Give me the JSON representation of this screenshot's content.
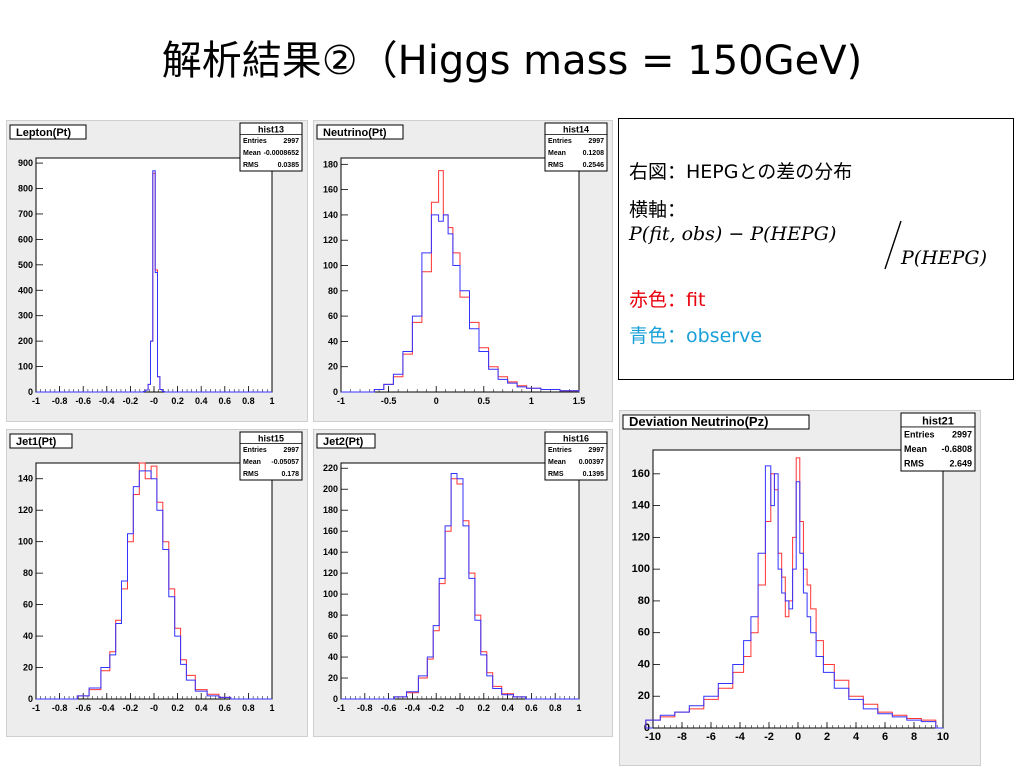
{
  "slide": {
    "title": "解析結果②（Higgs mass = 150GeV)"
  },
  "legend": {
    "line1": "右図：HEPGとの差の分布",
    "line2": "横軸：",
    "formula_numerator": "P(fit, obs) − P(HEPG)",
    "formula_denominator": "P(HEPG)",
    "red_label": "赤色：fit",
    "blue_label": "青色：observe",
    "red_color": "#e8000b",
    "blue_color": "#1aa0d8"
  },
  "colors": {
    "fit": "#ff3333",
    "observe": "#3333ff",
    "frame_bg": "#ededed",
    "plot_bg": "#ffffff"
  },
  "chart_data": [
    {
      "type": "histogram",
      "title": "Lepton(Pt)",
      "stats": {
        "name": "hist13",
        "entries": "2997",
        "mean": "-0.0008652",
        "rms": "0.0385"
      },
      "stats_labels": [
        "Entries",
        "Mean",
        "RMS"
      ],
      "xlim": [
        -1,
        1
      ],
      "ylim": [
        0,
        920
      ],
      "xticks": [
        -1,
        -0.8,
        -0.6,
        -0.4,
        -0.2,
        0,
        0.2,
        0.4,
        0.6,
        0.8,
        1
      ],
      "xtick_labels": [
        "-1",
        "-0.8",
        "-0.6",
        "-0.4",
        "-0.2",
        "-0",
        "0.2",
        "0.4",
        "0.6",
        "0.8",
        "1"
      ],
      "yticks": [
        0,
        100,
        200,
        300,
        400,
        500,
        600,
        700,
        800,
        900
      ],
      "x": [
        -0.08,
        -0.06,
        -0.04,
        -0.02,
        0.0,
        0.02,
        0.04,
        0.06,
        0.08
      ],
      "series": [
        {
          "values": [
            2,
            8,
            30,
            200,
            860,
            480,
            60,
            10,
            2
          ]
        },
        {
          "values": [
            2,
            8,
            30,
            200,
            870,
            470,
            60,
            10,
            2
          ]
        }
      ]
    },
    {
      "type": "histogram",
      "title": "Neutrino(Pt)",
      "stats": {
        "name": "hist14",
        "entries": "2997",
        "mean": "0.1208",
        "rms": "0.2546"
      },
      "stats_labels": [
        "Entries",
        "Mean",
        "RMS"
      ],
      "xlim": [
        -1,
        1.5
      ],
      "ylim": [
        0,
        185
      ],
      "xticks": [
        -1,
        -0.5,
        0,
        0.5,
        1,
        1.5
      ],
      "xtick_labels": [
        "-1",
        "-0.5",
        "0",
        "0.5",
        "1",
        "1.5"
      ],
      "yticks": [
        0,
        20,
        40,
        60,
        80,
        100,
        120,
        140,
        160,
        180
      ],
      "x": [
        -0.6,
        -0.5,
        -0.4,
        -0.3,
        -0.2,
        -0.1,
        0.0,
        0.05,
        0.1,
        0.15,
        0.2,
        0.3,
        0.4,
        0.5,
        0.6,
        0.7,
        0.8,
        0.9,
        1.0,
        1.2,
        1.4
      ],
      "series": [
        {
          "values": [
            2,
            6,
            12,
            30,
            55,
            95,
            150,
            175,
            140,
            130,
            110,
            75,
            55,
            35,
            20,
            12,
            8,
            5,
            3,
            2,
            1
          ]
        },
        {
          "values": [
            2,
            6,
            14,
            32,
            60,
            110,
            140,
            135,
            140,
            125,
            100,
            80,
            50,
            32,
            18,
            10,
            7,
            4,
            3,
            2,
            1
          ]
        }
      ]
    },
    {
      "type": "histogram",
      "title": "Jet1(Pt)",
      "stats": {
        "name": "hist15",
        "entries": "2997",
        "mean": "-0.05057",
        "rms": "0.178"
      },
      "stats_labels": [
        "Entries",
        "Mean",
        "RMS"
      ],
      "xlim": [
        -1,
        1
      ],
      "ylim": [
        0,
        150
      ],
      "xticks": [
        -1,
        -0.8,
        -0.6,
        -0.4,
        -0.2,
        0,
        0.2,
        0.4,
        0.6,
        0.8,
        1
      ],
      "xtick_labels": [
        "-1",
        "-0.8",
        "-0.6",
        "-0.4",
        "-0.2",
        "-0",
        "0.2",
        "0.4",
        "0.6",
        "0.8",
        "1"
      ],
      "yticks": [
        0,
        20,
        40,
        60,
        80,
        100,
        120,
        140
      ],
      "x": [
        -0.6,
        -0.5,
        -0.4,
        -0.35,
        -0.3,
        -0.25,
        -0.2,
        -0.15,
        -0.1,
        -0.05,
        0.0,
        0.05,
        0.1,
        0.15,
        0.2,
        0.25,
        0.3,
        0.4,
        0.5,
        0.6
      ],
      "series": [
        {
          "values": [
            2,
            6,
            18,
            30,
            50,
            70,
            100,
            130,
            150,
            140,
            148,
            125,
            100,
            70,
            45,
            25,
            15,
            6,
            3,
            1
          ]
        },
        {
          "values": [
            2,
            7,
            20,
            28,
            48,
            75,
            105,
            135,
            145,
            145,
            140,
            120,
            95,
            65,
            40,
            22,
            12,
            5,
            2,
            1
          ]
        }
      ]
    },
    {
      "type": "histogram",
      "title": "Jet2(Pt)",
      "stats": {
        "name": "hist16",
        "entries": "2997",
        "mean": "0.00397",
        "rms": "0.1395"
      },
      "stats_labels": [
        "Entries",
        "Mean",
        "RMS"
      ],
      "xlim": [
        -1,
        1
      ],
      "ylim": [
        0,
        225
      ],
      "xticks": [
        -1,
        -0.8,
        -0.6,
        -0.4,
        -0.2,
        0,
        0.2,
        0.4,
        0.6,
        0.8,
        1
      ],
      "xtick_labels": [
        "-1",
        "-0.8",
        "-0.6",
        "-0.4",
        "-0.2",
        "-0",
        "0.2",
        "0.4",
        "0.6",
        "0.8",
        "1"
      ],
      "yticks": [
        0,
        20,
        40,
        60,
        80,
        100,
        120,
        140,
        160,
        180,
        200,
        220
      ],
      "x": [
        -0.5,
        -0.4,
        -0.3,
        -0.25,
        -0.2,
        -0.15,
        -0.1,
        -0.05,
        0.0,
        0.05,
        0.1,
        0.15,
        0.2,
        0.25,
        0.3,
        0.4,
        0.5
      ],
      "series": [
        {
          "values": [
            2,
            6,
            20,
            38,
            65,
            110,
            160,
            210,
            205,
            170,
            120,
            80,
            45,
            25,
            12,
            5,
            2
          ]
        },
        {
          "values": [
            2,
            7,
            22,
            40,
            70,
            115,
            165,
            215,
            210,
            165,
            115,
            75,
            42,
            22,
            10,
            4,
            2
          ]
        }
      ]
    },
    {
      "type": "histogram",
      "title": "Deviation Neutrino(Pz)",
      "stats": {
        "name": "hist21",
        "entries": "2997",
        "mean": "-0.6808",
        "rms": "2.649"
      },
      "stats_labels": [
        "Entries",
        "Mean",
        "RMS"
      ],
      "xlim": [
        -10,
        10
      ],
      "ylim": [
        0,
        175
      ],
      "xticks": [
        -10,
        -8,
        -6,
        -4,
        -2,
        0,
        2,
        4,
        6,
        8,
        10
      ],
      "xtick_labels": [
        "-10",
        "-8",
        "-6",
        "-4",
        "-2",
        "0",
        "2",
        "4",
        "6",
        "8",
        "10"
      ],
      "yticks": [
        0,
        20,
        40,
        60,
        80,
        100,
        120,
        140,
        160
      ],
      "x": [
        -10,
        -9,
        -8,
        -7,
        -6,
        -5,
        -4,
        -3.5,
        -3,
        -2.5,
        -2,
        -1.75,
        -1.5,
        -1.25,
        -1,
        -0.75,
        -0.5,
        -0.25,
        0,
        0.25,
        0.5,
        0.75,
        1,
        1.5,
        2,
        3,
        4,
        5,
        6,
        7,
        8,
        9
      ],
      "series": [
        {
          "values": [
            5,
            7,
            10,
            12,
            18,
            25,
            35,
            45,
            60,
            90,
            130,
            160,
            150,
            110,
            95,
            70,
            80,
            120,
            170,
            130,
            100,
            90,
            75,
            55,
            40,
            30,
            20,
            15,
            10,
            8,
            6,
            5
          ]
        },
        {
          "values": [
            5,
            8,
            10,
            14,
            20,
            28,
            40,
            55,
            70,
            110,
            165,
            140,
            160,
            100,
            85,
            80,
            75,
            100,
            155,
            110,
            85,
            70,
            60,
            45,
            35,
            25,
            18,
            12,
            9,
            7,
            5,
            4
          ]
        }
      ]
    }
  ]
}
